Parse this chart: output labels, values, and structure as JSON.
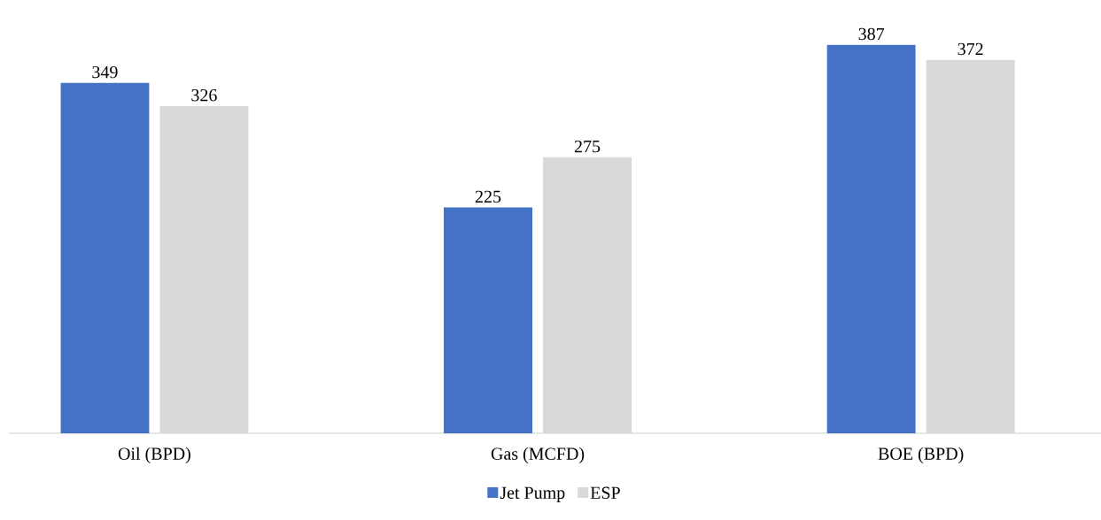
{
  "chart_data": {
    "type": "bar",
    "categories": [
      "Oil (BPD)",
      "Gas (MCFD)",
      "BOE (BPD)"
    ],
    "series": [
      {
        "name": "Jet Pump",
        "color": "#4472c4",
        "values": [
          349,
          225,
          387
        ]
      },
      {
        "name": "ESP",
        "color": "#d9d9d9",
        "values": [
          326,
          275,
          372
        ]
      }
    ],
    "data_labels": true,
    "legend": "bottom"
  }
}
